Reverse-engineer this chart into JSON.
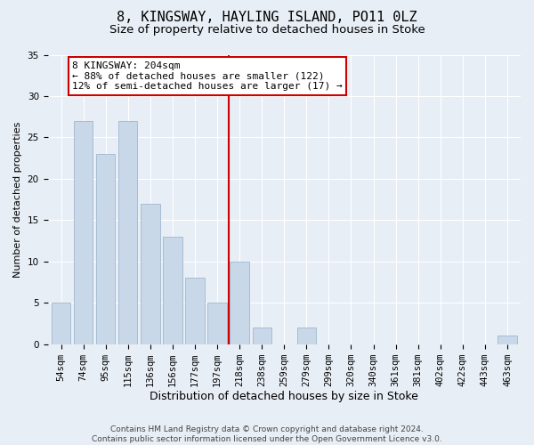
{
  "title1": "8, KINGSWAY, HAYLING ISLAND, PO11 0LZ",
  "title2": "Size of property relative to detached houses in Stoke",
  "xlabel": "Distribution of detached houses by size in Stoke",
  "ylabel": "Number of detached properties",
  "categories": [
    "54sqm",
    "74sqm",
    "95sqm",
    "115sqm",
    "136sqm",
    "156sqm",
    "177sqm",
    "197sqm",
    "218sqm",
    "238sqm",
    "259sqm",
    "279sqm",
    "299sqm",
    "320sqm",
    "340sqm",
    "361sqm",
    "381sqm",
    "402sqm",
    "422sqm",
    "443sqm",
    "463sqm"
  ],
  "values": [
    5,
    27,
    23,
    27,
    17,
    13,
    8,
    5,
    10,
    2,
    0,
    2,
    0,
    0,
    0,
    0,
    0,
    0,
    0,
    0,
    1
  ],
  "bar_color": "#c8d8e8",
  "bar_edge_color": "#a0b8d0",
  "vline_color": "#cc0000",
  "annotation_text": "8 KINGSWAY: 204sqm\n← 88% of detached houses are smaller (122)\n12% of semi-detached houses are larger (17) →",
  "annotation_box_color": "#ffffff",
  "annotation_box_edge_color": "#cc0000",
  "ylim": [
    0,
    35
  ],
  "yticks": [
    0,
    5,
    10,
    15,
    20,
    25,
    30,
    35
  ],
  "background_color": "#e8eef5",
  "grid_color": "#ffffff",
  "footer": "Contains HM Land Registry data © Crown copyright and database right 2024.\nContains public sector information licensed under the Open Government Licence v3.0.",
  "title1_fontsize": 11,
  "title2_fontsize": 9.5,
  "xlabel_fontsize": 9,
  "ylabel_fontsize": 8,
  "tick_fontsize": 7.5,
  "annotation_fontsize": 8,
  "footer_fontsize": 6.5
}
